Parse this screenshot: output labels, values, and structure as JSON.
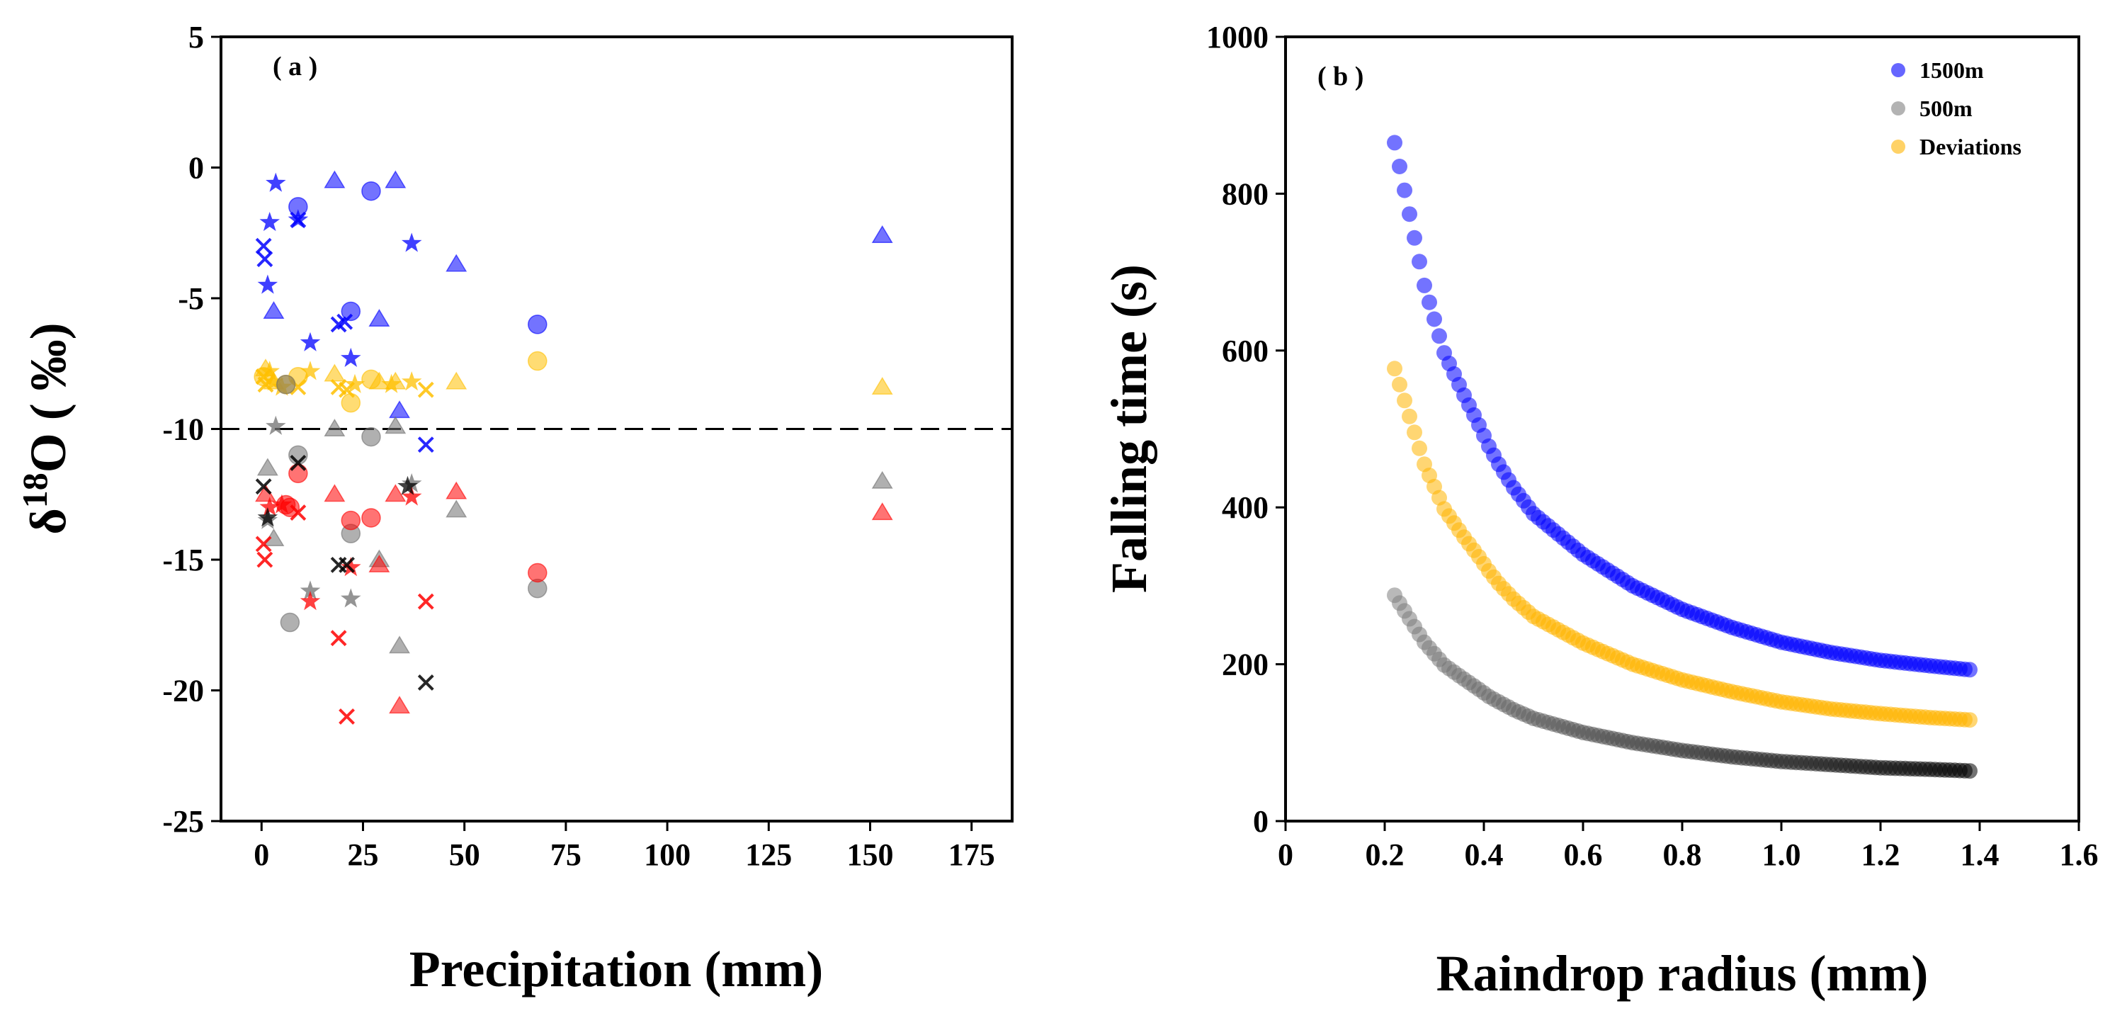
{
  "chart_data": [
    {
      "type": "scatter",
      "panel_label": "( a )",
      "xlabel": "Precipitation (mm)",
      "ylabel_prefix": "δ",
      "ylabel_sup": "18",
      "ylabel_suffix": "O ( ‰)",
      "xlim": [
        -10,
        185
      ],
      "ylim": [
        -25,
        5
      ],
      "xticks": [
        0,
        25,
        50,
        75,
        100,
        125,
        150,
        175
      ],
      "yticks": [
        -25,
        -20,
        -15,
        -10,
        -5,
        0,
        5
      ],
      "reference_line_y": -10,
      "legend": "none",
      "colors": {
        "blue": "#0000ff",
        "yellow": "#ffc000",
        "gray": "#707070",
        "red": "#ff0000",
        "black": "#000000"
      },
      "series": [
        {
          "color": "blue",
          "marker": "star",
          "points": [
            [
              3.5,
              -0.6
            ],
            [
              2,
              -2.1
            ],
            [
              1.5,
              -4.5
            ],
            [
              9,
              -2.0
            ],
            [
              12,
              -6.7
            ],
            [
              22,
              -7.3
            ],
            [
              37,
              -2.9
            ]
          ]
        },
        {
          "color": "blue",
          "marker": "circle",
          "points": [
            [
              9,
              -1.5
            ],
            [
              22,
              -5.5
            ],
            [
              27,
              -0.9
            ],
            [
              68,
              -6.0
            ]
          ]
        },
        {
          "color": "blue",
          "marker": "triangle",
          "points": [
            [
              3,
              -5.5
            ],
            [
              18,
              -0.5
            ],
            [
              29,
              -5.8
            ],
            [
              33,
              -0.5
            ],
            [
              34,
              -9.3
            ],
            [
              48,
              -3.7
            ],
            [
              153,
              -2.6
            ]
          ]
        },
        {
          "color": "blue",
          "marker": "cross",
          "points": [
            [
              0.5,
              -3.0
            ],
            [
              0.8,
              -3.5
            ],
            [
              9,
              -2.0
            ],
            [
              19,
              -6.0
            ],
            [
              20.5,
              -5.9
            ],
            [
              40.5,
              -10.6
            ]
          ]
        },
        {
          "color": "yellow",
          "marker": "star",
          "points": [
            [
              2,
              -7.8
            ],
            [
              3,
              -8.2
            ],
            [
              5,
              -8.4
            ],
            [
              12,
              -7.8
            ],
            [
              23,
              -8.3
            ],
            [
              32,
              -8.3
            ],
            [
              37,
              -8.2
            ]
          ]
        },
        {
          "color": "yellow",
          "marker": "circle",
          "points": [
            [
              0.5,
              -8.0
            ],
            [
              6,
              -8.3
            ],
            [
              9,
              -8.0
            ],
            [
              22,
              -9.0
            ],
            [
              27,
              -8.1
            ],
            [
              68,
              -7.4
            ]
          ]
        },
        {
          "color": "yellow",
          "marker": "triangle",
          "points": [
            [
              1,
              -7.7
            ],
            [
              3,
              -8.2
            ],
            [
              18,
              -7.9
            ],
            [
              29,
              -8.2
            ],
            [
              33,
              -8.2
            ],
            [
              48,
              -8.2
            ],
            [
              153,
              -8.4
            ]
          ]
        },
        {
          "color": "yellow",
          "marker": "cross",
          "points": [
            [
              0.5,
              -8.0
            ],
            [
              1,
              -8.3
            ],
            [
              9,
              -8.4
            ],
            [
              19,
              -8.4
            ],
            [
              21,
              -8.5
            ],
            [
              40.5,
              -8.5
            ]
          ]
        },
        {
          "color": "gray",
          "marker": "star",
          "points": [
            [
              1.5,
              -13.5
            ],
            [
              3.5,
              -9.9
            ],
            [
              12,
              -16.2
            ],
            [
              22,
              -16.5
            ],
            [
              37,
              -12.1
            ]
          ]
        },
        {
          "color": "gray",
          "marker": "circle",
          "points": [
            [
              6,
              -8.3
            ],
            [
              7,
              -17.4
            ],
            [
              9,
              -11.0
            ],
            [
              22,
              -14.0
            ],
            [
              27,
              -10.3
            ],
            [
              68,
              -16.1
            ]
          ]
        },
        {
          "color": "gray",
          "marker": "triangle",
          "points": [
            [
              1.5,
              -11.5
            ],
            [
              3,
              -14.2
            ],
            [
              18,
              -10.0
            ],
            [
              29,
              -15.0
            ],
            [
              33,
              -9.9
            ],
            [
              34,
              -18.3
            ],
            [
              48,
              -13.1
            ],
            [
              153,
              -12.0
            ]
          ]
        },
        {
          "color": "red",
          "marker": "star",
          "points": [
            [
              2,
              -13.0
            ],
            [
              5,
              -12.9
            ],
            [
              12,
              -16.6
            ],
            [
              22,
              -15.3
            ],
            [
              37,
              -12.6
            ]
          ]
        },
        {
          "color": "red",
          "marker": "circle",
          "points": [
            [
              6,
              -12.9
            ],
            [
              7,
              -13.0
            ],
            [
              9,
              -11.7
            ],
            [
              22,
              -13.5
            ],
            [
              27,
              -13.4
            ],
            [
              68,
              -15.5
            ]
          ]
        },
        {
          "color": "red",
          "marker": "triangle",
          "points": [
            [
              1,
              -12.5
            ],
            [
              18,
              -12.5
            ],
            [
              29,
              -15.2
            ],
            [
              33,
              -12.5
            ],
            [
              34,
              -20.6
            ],
            [
              48,
              -12.4
            ],
            [
              153,
              -13.2
            ]
          ]
        },
        {
          "color": "red",
          "marker": "cross",
          "points": [
            [
              0.5,
              -14.4
            ],
            [
              0.8,
              -15.0
            ],
            [
              9,
              -13.2
            ],
            [
              19,
              -18.0
            ],
            [
              21,
              -21.0
            ],
            [
              40.5,
              -16.6
            ]
          ]
        },
        {
          "color": "black",
          "marker": "star",
          "points": [
            [
              1.5,
              -13.4
            ],
            [
              36,
              -12.2
            ]
          ]
        },
        {
          "color": "black",
          "marker": "cross",
          "points": [
            [
              0.5,
              -12.2
            ],
            [
              9,
              -11.3
            ],
            [
              19,
              -15.2
            ],
            [
              21,
              -15.2
            ],
            [
              40.5,
              -19.7
            ]
          ]
        }
      ]
    },
    {
      "type": "scatter",
      "panel_label": "( b )",
      "xlabel": "Raindrop radius (mm)",
      "ylabel": "Falling time (s)",
      "xlim": [
        0,
        1.6
      ],
      "ylim": [
        0,
        1000
      ],
      "xticks": [
        "0",
        "0.2",
        "0.4",
        "0.6",
        "0.8",
        "1.0",
        "1.2",
        "1.4",
        "1.6"
      ],
      "yticks": [
        0,
        200,
        400,
        600,
        800,
        1000
      ],
      "legend": "top-right",
      "radius_range": [
        0.22,
        1.38
      ],
      "radius_step": 0.01,
      "series": [
        {
          "name": "1500m",
          "color": "#0000ff",
          "anchor_points": [
            [
              0.22,
              865
            ],
            [
              0.28,
              683
            ],
            [
              0.32,
              597
            ],
            [
              0.36,
              543
            ],
            [
              0.39,
              505
            ],
            [
              0.41,
              478
            ],
            [
              0.43,
              455
            ],
            [
              0.46,
              425
            ],
            [
              0.5,
              392
            ],
            [
              0.6,
              340
            ],
            [
              0.7,
              300
            ],
            [
              0.8,
              270
            ],
            [
              0.9,
              247
            ],
            [
              1.0,
              228
            ],
            [
              1.1,
              215
            ],
            [
              1.2,
              205
            ],
            [
              1.3,
              198
            ],
            [
              1.38,
              193
            ]
          ]
        },
        {
          "name": "500m",
          "color": "#808080",
          "color_end": "#000000",
          "anchor_points": [
            [
              0.22,
              288
            ],
            [
              0.28,
              228
            ],
            [
              0.32,
              199
            ],
            [
              0.36,
              181
            ],
            [
              0.39,
              168
            ],
            [
              0.41,
              159
            ],
            [
              0.43,
              152
            ],
            [
              0.46,
              142
            ],
            [
              0.5,
              131
            ],
            [
              0.6,
              113
            ],
            [
              0.7,
              100
            ],
            [
              0.8,
              90
            ],
            [
              0.9,
              82
            ],
            [
              1.0,
              76
            ],
            [
              1.1,
              72
            ],
            [
              1.2,
              68
            ],
            [
              1.3,
              66
            ],
            [
              1.38,
              64
            ]
          ]
        },
        {
          "name": "Deviations",
          "color": "#ffb400",
          "anchor_points": [
            [
              0.22,
              577
            ],
            [
              0.28,
              455
            ],
            [
              0.32,
              398
            ],
            [
              0.36,
              362
            ],
            [
              0.39,
              337
            ],
            [
              0.41,
              319
            ],
            [
              0.43,
              303
            ],
            [
              0.46,
              283
            ],
            [
              0.5,
              261
            ],
            [
              0.6,
              227
            ],
            [
              0.7,
              200
            ],
            [
              0.8,
              180
            ],
            [
              0.9,
              165
            ],
            [
              1.0,
              152
            ],
            [
              1.1,
              143
            ],
            [
              1.2,
              137
            ],
            [
              1.3,
              132
            ],
            [
              1.38,
              129
            ]
          ]
        }
      ]
    }
  ]
}
